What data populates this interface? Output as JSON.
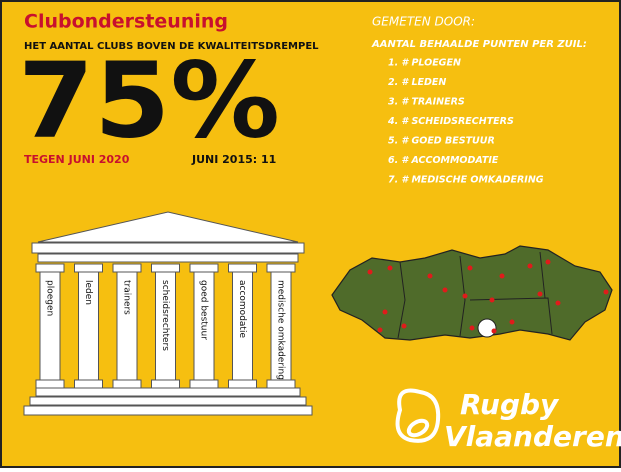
{
  "header": {
    "title": "Clubondersteuning",
    "subtitle": "HET AANTAL CLUBS BOVEN DE KWALITEITSDREMPEL",
    "big_number": "75%",
    "target": "TEGEN JUNI 2020",
    "baseline": "JUNI 2015: 11"
  },
  "measured": {
    "title": "GEMETEN DOOR:",
    "subtitle": "AANTAL BEHAALDE PUNTEN PER ZUIL:",
    "items": [
      "1. # PLOEGEN",
      "2. # LEDEN",
      "3. # TRAINERS",
      "4. # SCHEIDSRECHTERS",
      "5. # GOED BESTUUR",
      "6. # ACCOMMODATIE",
      "7. # MEDISCHE OMKADERING"
    ]
  },
  "pillars": [
    "ploegen",
    "leden",
    "trainers",
    "scheidsrechters",
    "goed bestuur",
    "accomodatie",
    "medische omkadering"
  ],
  "logo": {
    "line1": "Rugby",
    "line2": "Vlaanderen"
  }
}
